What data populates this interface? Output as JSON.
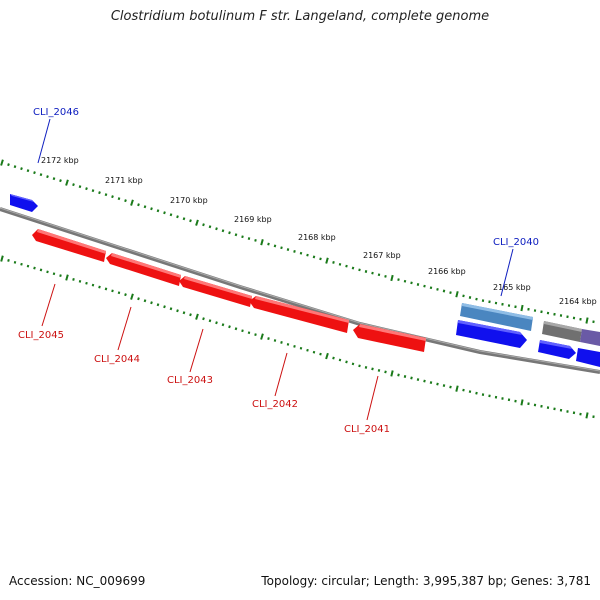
{
  "title": "Clostridium botulinum F str. Langeland, complete genome",
  "footer": {
    "accession": "Accession: NC_009699",
    "stats": "Topology: circular; Length: 3,995,387 bp; Genes: 3,781"
  },
  "colors": {
    "forward_gene": "#1010ee",
    "reverse_gene": "#ee1111",
    "highlight_gene": "#4a86c0",
    "other_gene": "#707070",
    "tick": "#1a7a1a",
    "backbone": "#777777",
    "forward_label": "#1020c0",
    "reverse_label": "#cc1111"
  },
  "ruler": {
    "unit": "kbp",
    "labels": [
      "2172 kbp",
      "2171 kbp",
      "2170 kbp",
      "2169 kbp",
      "2168 kbp",
      "2167 kbp",
      "2166 kbp",
      "2165 kbp",
      "2164 kbp"
    ]
  },
  "genes": [
    {
      "label": "CLI_2046",
      "strand": "forward"
    },
    {
      "label": "CLI_2045",
      "strand": "reverse"
    },
    {
      "label": "CLI_2044",
      "strand": "reverse"
    },
    {
      "label": "CLI_2043",
      "strand": "reverse"
    },
    {
      "label": "CLI_2042",
      "strand": "reverse"
    },
    {
      "label": "CLI_2041",
      "strand": "reverse"
    },
    {
      "label": "CLI_2040",
      "strand": "forward",
      "highlighted": true
    }
  ]
}
